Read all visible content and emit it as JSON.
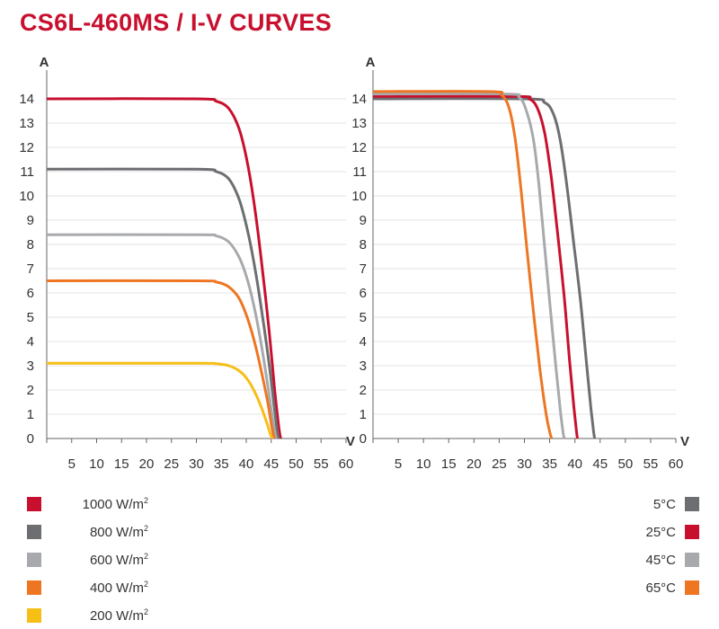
{
  "page": {
    "title": "CS6L-460MS / I-V CURVES"
  },
  "colors": {
    "red": "#c8102e",
    "dark_gray": "#6d6e71",
    "light_gray": "#a7a9ac",
    "orange": "#ee7623",
    "yellow": "#f7be16",
    "grid": "#e3e3e3"
  },
  "legend_irradiance": [
    {
      "value": "1000 W/m",
      "sup": "2",
      "color": "#c8102e"
    },
    {
      "value": "800 W/m",
      "sup": "2",
      "color": "#6d6e71"
    },
    {
      "value": "600 W/m",
      "sup": "2",
      "color": "#a7a9ac"
    },
    {
      "value": "400 W/m",
      "sup": "2",
      "color": "#ee7623"
    },
    {
      "value": "200 W/m",
      "sup": "2",
      "color": "#f7be16"
    }
  ],
  "legend_temperature": [
    {
      "label": "5°C",
      "color": "#6d6e71"
    },
    {
      "label": "25°C",
      "color": "#c8102e"
    },
    {
      "label": "45°C",
      "color": "#a7a9ac"
    },
    {
      "label": "65°C",
      "color": "#ee7623"
    }
  ],
  "chart_data": [
    {
      "type": "line",
      "ylabel": "A",
      "xlabel": "V",
      "xlim": [
        0,
        60
      ],
      "ylim": [
        0,
        14
      ],
      "x_ticks": [
        5,
        10,
        15,
        20,
        25,
        30,
        35,
        40,
        45,
        50,
        55,
        60
      ],
      "y_ticks": [
        0,
        1,
        2,
        3,
        4,
        5,
        6,
        7,
        8,
        9,
        10,
        11,
        12,
        13,
        14
      ],
      "y_tick_labels": [
        "0",
        "1",
        "2",
        "3",
        "4",
        "5",
        "6",
        "7",
        "8",
        "9",
        "10",
        "11",
        "12",
        "13",
        "14"
      ],
      "series": [
        {
          "name": "1000 W/m2",
          "color": "#c8102e",
          "points": [
            [
              0,
              14.0
            ],
            [
              30,
              14.0
            ],
            [
              34,
              13.9
            ],
            [
              36.5,
              13.6
            ],
            [
              38.5,
              12.8
            ],
            [
              40,
              11.6
            ],
            [
              41.5,
              9.8
            ],
            [
              43,
              7.4
            ],
            [
              44.5,
              4.6
            ],
            [
              45.7,
              2.0
            ],
            [
              46.5,
              0.5
            ],
            [
              46.9,
              0
            ]
          ]
        },
        {
          "name": "800 W/m2",
          "color": "#6d6e71",
          "points": [
            [
              0,
              11.1
            ],
            [
              30,
              11.1
            ],
            [
              34,
              11.0
            ],
            [
              36.5,
              10.7
            ],
            [
              38.5,
              9.9
            ],
            [
              40,
              8.8
            ],
            [
              41.5,
              7.3
            ],
            [
              43,
              5.4
            ],
            [
              44.5,
              3.2
            ],
            [
              45.6,
              1.3
            ],
            [
              46.2,
              0.3
            ],
            [
              46.5,
              0
            ]
          ]
        },
        {
          "name": "600 W/m2",
          "color": "#a7a9ac",
          "points": [
            [
              0,
              8.4
            ],
            [
              30,
              8.4
            ],
            [
              34,
              8.35
            ],
            [
              36.5,
              8.1
            ],
            [
              38.5,
              7.5
            ],
            [
              40,
              6.7
            ],
            [
              41.5,
              5.5
            ],
            [
              43,
              3.9
            ],
            [
              44.3,
              2.2
            ],
            [
              45.3,
              0.8
            ],
            [
              46,
              0
            ]
          ]
        },
        {
          "name": "400 W/m2",
          "color": "#ee7623",
          "points": [
            [
              0,
              6.5
            ],
            [
              30,
              6.5
            ],
            [
              34,
              6.45
            ],
            [
              36.5,
              6.25
            ],
            [
              38.5,
              5.8
            ],
            [
              40,
              5.1
            ],
            [
              41.5,
              4.1
            ],
            [
              43,
              2.8
            ],
            [
              44.3,
              1.5
            ],
            [
              45.1,
              0.5
            ],
            [
              45.6,
              0
            ]
          ]
        },
        {
          "name": "200 W/m2",
          "color": "#f7be16",
          "points": [
            [
              0,
              3.1
            ],
            [
              30,
              3.1
            ],
            [
              34,
              3.08
            ],
            [
              36.5,
              3.0
            ],
            [
              38.5,
              2.8
            ],
            [
              40,
              2.5
            ],
            [
              41.5,
              2.0
            ],
            [
              43,
              1.3
            ],
            [
              44.2,
              0.6
            ],
            [
              44.8,
              0.2
            ],
            [
              45.2,
              0
            ]
          ]
        }
      ]
    },
    {
      "type": "line",
      "ylabel": "A",
      "xlabel": "V",
      "xlim": [
        0,
        60
      ],
      "ylim": [
        0,
        14
      ],
      "x_ticks": [
        5,
        10,
        15,
        20,
        25,
        30,
        35,
        40,
        45,
        50,
        55,
        60
      ],
      "y_ticks": [
        0,
        1,
        2,
        3,
        4,
        5,
        6,
        7,
        8,
        9,
        10,
        11,
        12,
        13,
        14
      ],
      "y_tick_labels": [
        "0",
        "1",
        "2",
        "3",
        "4",
        "5",
        "6",
        "7",
        "8",
        "9",
        "10",
        "11",
        "12",
        "13",
        "14"
      ],
      "series": [
        {
          "name": "5°C",
          "color": "#6d6e71",
          "points": [
            [
              0,
              14.0
            ],
            [
              30,
              14.0
            ],
            [
              34,
              13.85
            ],
            [
              35.7,
              13.4
            ],
            [
              37,
              12.4
            ],
            [
              38.3,
              10.6
            ],
            [
              39.8,
              8.0
            ],
            [
              41.2,
              5.5
            ],
            [
              42.3,
              3.1
            ],
            [
              43.2,
              1.2
            ],
            [
              43.7,
              0.3
            ],
            [
              43.9,
              0
            ]
          ]
        },
        {
          "name": "25°C",
          "color": "#c8102e",
          "points": [
            [
              0,
              14.1
            ],
            [
              28,
              14.1
            ],
            [
              31,
              14.0
            ],
            [
              32.6,
              13.6
            ],
            [
              34,
              12.6
            ],
            [
              35.3,
              10.8
            ],
            [
              36.6,
              8.4
            ],
            [
              37.9,
              5.8
            ],
            [
              38.9,
              3.3
            ],
            [
              39.8,
              1.3
            ],
            [
              40.3,
              0.3
            ],
            [
              40.5,
              0
            ]
          ]
        },
        {
          "name": "45°C",
          "color": "#a7a9ac",
          "points": [
            [
              0,
              14.2
            ],
            [
              26,
              14.2
            ],
            [
              29,
              14.05
            ],
            [
              30.4,
              13.5
            ],
            [
              31.8,
              12.3
            ],
            [
              32.9,
              10.4
            ],
            [
              34,
              7.9
            ],
            [
              35.2,
              5.2
            ],
            [
              36.3,
              2.8
            ],
            [
              37.2,
              1.0
            ],
            [
              37.7,
              0.2
            ],
            [
              37.9,
              0
            ]
          ]
        },
        {
          "name": "65°C",
          "color": "#ee7623",
          "points": [
            [
              0,
              14.3
            ],
            [
              23,
              14.3
            ],
            [
              25.5,
              14.15
            ],
            [
              27,
              13.6
            ],
            [
              28.2,
              12.3
            ],
            [
              29.3,
              10.3
            ],
            [
              30.5,
              7.8
            ],
            [
              31.8,
              5.2
            ],
            [
              33.1,
              2.8
            ],
            [
              34.3,
              1.0
            ],
            [
              35.1,
              0.2
            ],
            [
              35.4,
              0
            ]
          ]
        }
      ]
    }
  ]
}
